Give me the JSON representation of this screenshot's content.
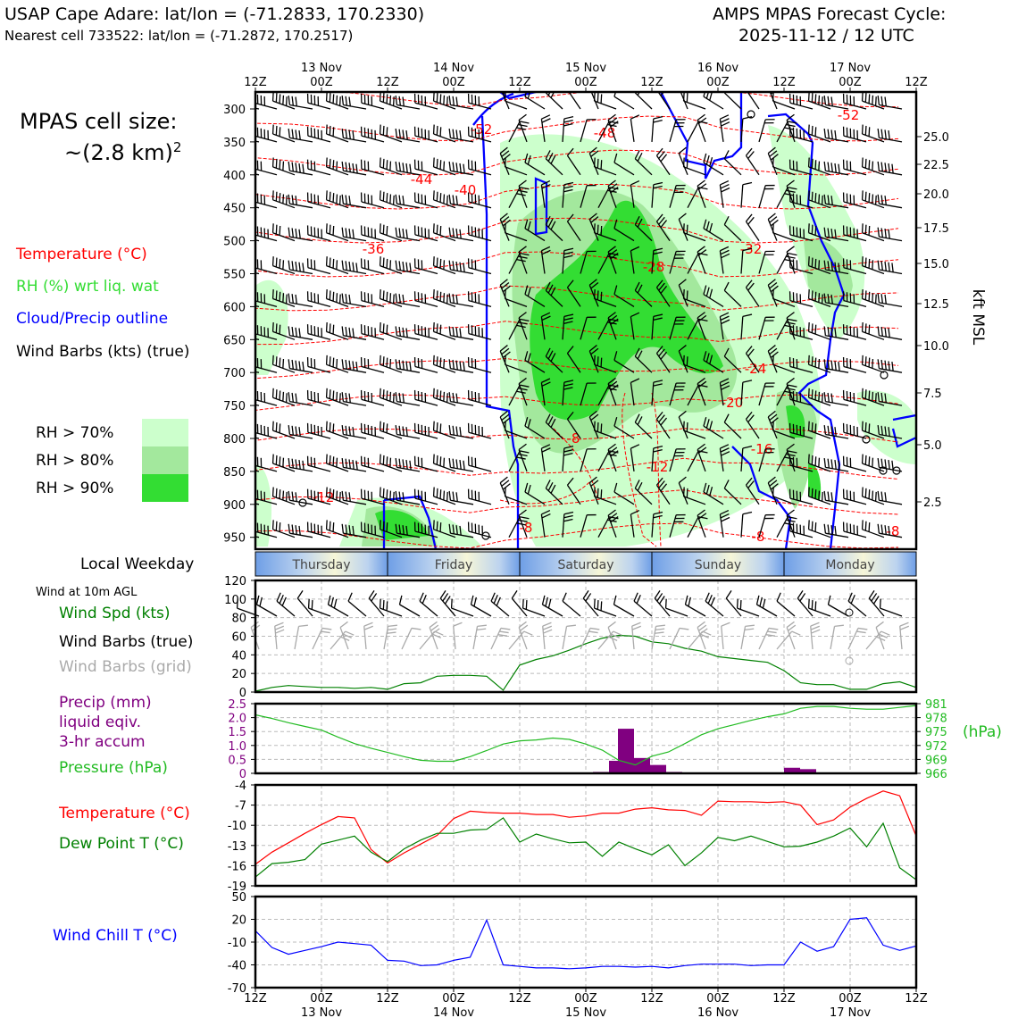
{
  "header": {
    "station_line": "USAP Cape Adare: lat/lon = (-71.2833, 170.2330)",
    "cell_line": "Nearest cell 733522: lat/lon = (-71.2872, 170.2517)",
    "model_line": "AMPS MPAS Forecast Cycle:",
    "cycle_line": "2025-11-12 / 12 UTC"
  },
  "cell_size": {
    "label": "MPAS cell size:",
    "value": "~(2.8 km)",
    "exponent": "2"
  },
  "legend": {
    "temperature": "Temperature (°C)",
    "rh": "RH (%) wrt liq. wat",
    "cloud": "Cloud/Precip outline",
    "wind": "Wind Barbs (kts) (true)",
    "rh70": "RH > 70%",
    "rh80": "RH > 80%",
    "rh90": "RH > 90%"
  },
  "colors": {
    "rh70": "#ccffcc",
    "rh80": "#a3e89d",
    "rh90": "#33dd33",
    "temperature": "#ff0000",
    "cloud": "#0000ff",
    "wind_speed": "#008000",
    "pressure": "#22bb22",
    "precip": "#800080",
    "dewpoint": "#008000",
    "wind_chill": "#0000ff",
    "grid_barb": "#aaaaaa"
  },
  "time_axis": {
    "top_ticks": [
      "12Z",
      "00Z",
      "12Z",
      "00Z",
      "12Z",
      "00Z",
      "12Z",
      "00Z",
      "12Z",
      "00Z",
      "12Z"
    ],
    "bottom_ticks": [
      "12Z",
      "00Z",
      "12Z",
      "00Z",
      "12Z",
      "00Z",
      "12Z",
      "00Z",
      "12Z",
      "00Z",
      "12Z"
    ],
    "dates": [
      "13 Nov",
      "14 Nov",
      "15 Nov",
      "16 Nov",
      "17 Nov"
    ]
  },
  "weekday": {
    "label": "Local Weekday",
    "days": [
      "Thursday",
      "Friday",
      "Saturday",
      "Sunday",
      "Monday"
    ]
  },
  "cross_section": {
    "pressure_levels": [
      "300",
      "350",
      "400",
      "450",
      "500",
      "550",
      "600",
      "650",
      "700",
      "750",
      "800",
      "850",
      "900",
      "950"
    ],
    "height_ticks": [
      "25.0",
      "22.5",
      "20.0",
      "17.5",
      "15.0",
      "12.5",
      "10.0",
      "7.5",
      "5.0",
      "2.5"
    ],
    "height_label": "kft MSL",
    "temp_labels": [
      "-52",
      "-48",
      "-44",
      "-40",
      "-36",
      "-32",
      "-28",
      "-24",
      "-20",
      "-16",
      "-12",
      "-12",
      "-8",
      "-8",
      "-8",
      "-8",
      "-52"
    ]
  },
  "wind_panel": {
    "title": "Wind at 10m AGL",
    "speed_label": "Wind Spd (kts)",
    "barb_true_label": "Wind Barbs (true)",
    "barb_grid_label": "Wind Barbs (grid)"
  },
  "precip_panel": {
    "precip_label_1": "Precip (mm)",
    "precip_label_2": "liquid eqiv.",
    "precip_label_3": "3-hr accum",
    "pressure_label": "Pressure (hPa)",
    "unit_right": "(hPa)"
  },
  "temp_panel": {
    "temp_label": "Temperature (°C)",
    "dew_label": "Dew Point T (°C)"
  },
  "chill_panel": {
    "label": "Wind Chill T (°C)"
  },
  "chart_data": [
    {
      "type": "line",
      "panel": "10m wind speed",
      "x": [
        "12Z 12 Nov",
        "15Z",
        "18Z",
        "21Z",
        "00Z 13 Nov",
        "03Z",
        "06Z",
        "09Z",
        "12Z 13 Nov",
        "15Z",
        "18Z",
        "21Z",
        "00Z 14 Nov",
        "03Z",
        "06Z",
        "09Z",
        "12Z 14 Nov",
        "15Z",
        "18Z",
        "21Z",
        "00Z 15 Nov",
        "03Z",
        "06Z",
        "09Z",
        "12Z 15 Nov",
        "15Z",
        "18Z",
        "21Z",
        "00Z 16 Nov",
        "03Z",
        "06Z",
        "09Z",
        "12Z 16 Nov",
        "15Z",
        "18Z",
        "21Z",
        "00Z 17 Nov",
        "03Z",
        "06Z",
        "09Z",
        "12Z 17 Nov"
      ],
      "series": [
        {
          "values": [
            1,
            5,
            7,
            6,
            5,
            5,
            4,
            5,
            3,
            9,
            10,
            17,
            18,
            18,
            17,
            2,
            29,
            35,
            39,
            45,
            52,
            58,
            61,
            60,
            54,
            52,
            47,
            44,
            38,
            36,
            34,
            32,
            23,
            10,
            8,
            8,
            3,
            3,
            9,
            11,
            5
          ]
        }
      ],
      "ylim": [
        0,
        120
      ],
      "yticks": [
        "0",
        "20",
        "40",
        "60",
        "80",
        "100",
        "120"
      ]
    },
    {
      "type": "bar",
      "panel": "3-hr precip",
      "x": [
        "00Z 15 Nov",
        "03Z",
        "06Z",
        "09Z",
        "12Z 15 Nov",
        "15Z",
        "12Z 16 Nov",
        "15Z"
      ],
      "series": [
        {
          "values": [
            0.05,
            0.45,
            1.6,
            0.55,
            0.3,
            0.05,
            0.2,
            0.15
          ]
        }
      ],
      "ylim": [
        0,
        2.5
      ],
      "yticks": [
        "0",
        "0.5",
        "1.0",
        "1.5",
        "2.0",
        "2.5"
      ]
    },
    {
      "type": "line",
      "panel": "pressure",
      "x": [
        "12Z 12 Nov",
        "15Z",
        "18Z",
        "21Z",
        "00Z 13 Nov",
        "03Z",
        "06Z",
        "09Z",
        "12Z 13 Nov",
        "15Z",
        "18Z",
        "21Z",
        "00Z 14 Nov",
        "03Z",
        "06Z",
        "09Z",
        "12Z 14 Nov",
        "15Z",
        "18Z",
        "21Z",
        "00Z 15 Nov",
        "03Z",
        "06Z",
        "09Z",
        "12Z 15 Nov",
        "15Z",
        "18Z",
        "21Z",
        "00Z 16 Nov",
        "03Z",
        "06Z",
        "09Z",
        "12Z 16 Nov",
        "15Z",
        "18Z",
        "21Z",
        "00Z 17 Nov",
        "03Z",
        "06Z",
        "09Z",
        "12Z 17 Nov"
      ],
      "series": [
        {
          "values": [
            978.6,
            977.8,
            976.9,
            976.1,
            975.3,
            973.8,
            972.4,
            971.4,
            970.5,
            969.6,
            968.8,
            968.6,
            968.6,
            969.6,
            970.9,
            972.3,
            973.0,
            973.2,
            973.6,
            973.3,
            972.3,
            971.0,
            968.8,
            967.8,
            969.7,
            970.6,
            972.4,
            974.3,
            975.6,
            976.5,
            977.4,
            978.2,
            978.8,
            980.0,
            980.4,
            980.4,
            980.0,
            979.8,
            979.8,
            980.2,
            980.6
          ]
        }
      ],
      "ylim": [
        966,
        981
      ],
      "yticks": [
        "966",
        "969",
        "972",
        "975",
        "978",
        "981"
      ]
    },
    {
      "type": "line",
      "panel": "temperature and dew point",
      "x": [
        "12Z 12 Nov",
        "15Z",
        "18Z",
        "21Z",
        "00Z 13 Nov",
        "03Z",
        "06Z",
        "09Z",
        "12Z 13 Nov",
        "15Z",
        "18Z",
        "21Z",
        "00Z 14 Nov",
        "03Z",
        "06Z",
        "09Z",
        "12Z 14 Nov",
        "15Z",
        "18Z",
        "21Z",
        "00Z 15 Nov",
        "03Z",
        "06Z",
        "09Z",
        "12Z 15 Nov",
        "15Z",
        "18Z",
        "21Z",
        "00Z 16 Nov",
        "03Z",
        "06Z",
        "09Z",
        "12Z 16 Nov",
        "15Z",
        "18Z",
        "21Z",
        "00Z 17 Nov",
        "03Z",
        "06Z",
        "09Z",
        "12Z 17 Nov"
      ],
      "series": [
        {
          "values": [
            -15.8,
            -14.0,
            -12.6,
            -11.2,
            -9.9,
            -8.7,
            -8.9,
            -13.6,
            -15.6,
            -14.1,
            -12.8,
            -11.5,
            -9.0,
            -7.9,
            -8.1,
            -8.2,
            -8.2,
            -8.4,
            -8.4,
            -8.8,
            -8.6,
            -8.2,
            -8.2,
            -7.6,
            -7.4,
            -7.7,
            -7.8,
            -8.5,
            -6.4,
            -6.5,
            -6.5,
            -6.6,
            -6.5,
            -7.0,
            -9.9,
            -9.2,
            -7.3,
            -6.0,
            -4.9,
            -5.6,
            -11.6
          ]
        },
        {
          "values": [
            -17.7,
            -15.7,
            -15.5,
            -15.1,
            -12.8,
            -12.2,
            -11.6,
            -14.0,
            -15.4,
            -13.5,
            -12.2,
            -11.2,
            -11.2,
            -10.7,
            -10.6,
            -8.9,
            -12.5,
            -11.3,
            -12.0,
            -12.6,
            -12.5,
            -14.6,
            -12.5,
            -13.5,
            -14.4,
            -12.9,
            -16.0,
            -14.1,
            -11.8,
            -12.3,
            -11.6,
            -12.4,
            -13.2,
            -13.1,
            -12.5,
            -11.6,
            -10.4,
            -13.2,
            -9.7,
            -16.3,
            -18.1
          ]
        }
      ],
      "ylim": [
        -19,
        -4
      ],
      "yticks": [
        "-19",
        "-16",
        "-13",
        "-10",
        "-7",
        "-4"
      ]
    },
    {
      "type": "line",
      "panel": "wind chill",
      "x": [
        "12Z 12 Nov",
        "15Z",
        "18Z",
        "21Z",
        "00Z 13 Nov",
        "03Z",
        "06Z",
        "09Z",
        "12Z 13 Nov",
        "15Z",
        "18Z",
        "21Z",
        "00Z 14 Nov",
        "03Z",
        "06Z",
        "09Z",
        "12Z 14 Nov",
        "15Z",
        "18Z",
        "21Z",
        "00Z 15 Nov",
        "03Z",
        "06Z",
        "09Z",
        "12Z 15 Nov",
        "15Z",
        "18Z",
        "21Z",
        "00Z 16 Nov",
        "03Z",
        "06Z",
        "09Z",
        "12Z 16 Nov",
        "15Z",
        "18Z",
        "21Z",
        "00Z 17 Nov",
        "03Z",
        "06Z",
        "09Z",
        "12Z 17 Nov"
      ],
      "series": [
        {
          "values": [
            5,
            -17,
            -26,
            -21,
            -16,
            -10,
            -12,
            -14,
            -34,
            -35,
            -41,
            -40,
            -34,
            -30,
            19,
            -40,
            -42,
            -44,
            -44,
            -45,
            -44,
            -42,
            -42,
            -43,
            -42,
            -44,
            -41,
            -39,
            -39,
            -39,
            -41,
            -40,
            -40,
            -10,
            -22,
            -16,
            20,
            22,
            -14,
            -21,
            -15
          ]
        }
      ],
      "ylim": [
        -70,
        50
      ],
      "yticks": [
        "-70",
        "-40",
        "-10",
        "20",
        "50"
      ]
    }
  ]
}
